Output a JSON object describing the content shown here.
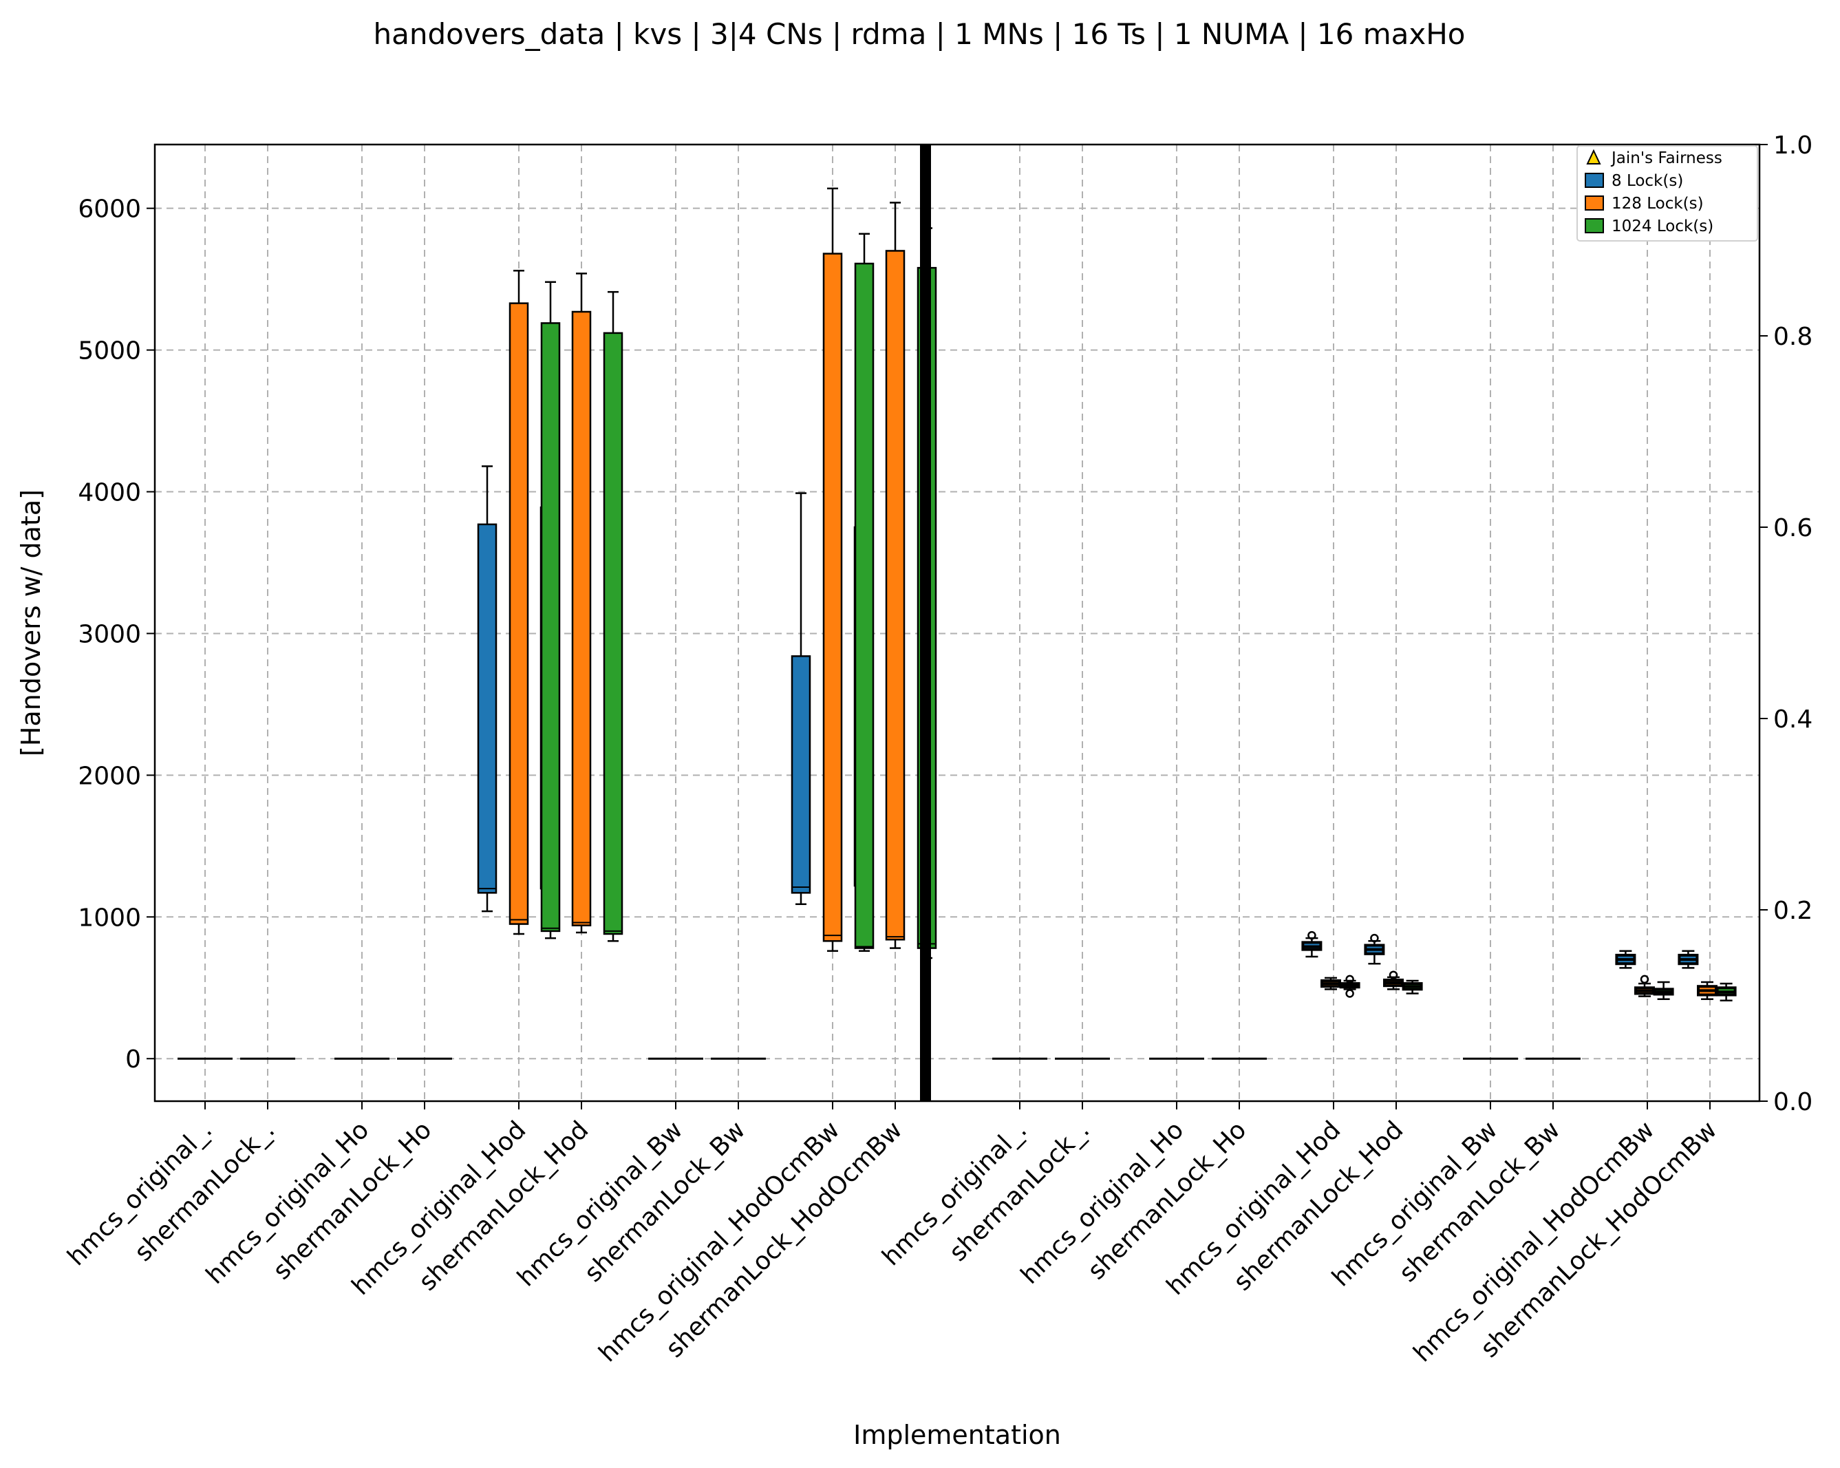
{
  "chart_data": {
    "type": "box",
    "title": "handovers_data | kvs | 3|4 CNs | rdma | 1 MNs | 16 Ts | 1 NUMA | 16 maxHo",
    "xlabel": "Implementation",
    "ylabel": "[Handovers w/ data]",
    "ylim": [
      -300,
      6450
    ],
    "y_ticks": [
      0,
      1000,
      2000,
      3000,
      4000,
      5000,
      6000
    ],
    "y2lim": [
      0,
      1
    ],
    "y2_ticks": [
      "0.0",
      "0.2",
      "0.4",
      "0.6",
      "0.8",
      "1.0"
    ],
    "grid": true,
    "legend_position": "top-right",
    "colors": {
      "8 Lock(s)": "#1f77b4",
      "128 Lock(s)": "#ff7f0e",
      "1024 Lock(s)": "#2ca02c",
      "Jain's Fairness": "#ffd700"
    },
    "legend": [
      {
        "label": "Jain's Fairness",
        "marker": "triangle"
      },
      {
        "label": "8 Lock(s)",
        "marker": "box"
      },
      {
        "label": "128 Lock(s)",
        "marker": "box"
      },
      {
        "label": "1024 Lock(s)",
        "marker": "box"
      }
    ],
    "categories": [
      "hmcs_original_.",
      "shermanLock_.",
      "hmcs_original_Ho",
      "shermanLock_Ho",
      "hmcs_original_Hod",
      "shermanLock_Hod",
      "hmcs_original_Bw",
      "shermanLock_Bw",
      "hmcs_original_HodOcmBw",
      "shermanLock_HodOcmBw",
      "hmcs_original_.",
      "shermanLock_.",
      "hmcs_original_Ho",
      "shermanLock_Ho",
      "hmcs_original_Hod",
      "shermanLock_Hod",
      "hmcs_original_Bw",
      "shermanLock_Bw",
      "hmcs_original_HodOcmBw",
      "shermanLock_HodOcmBw"
    ],
    "left_panel_series": [
      {
        "name": "8 Lock(s)",
        "boxes": [
          null,
          null,
          null,
          null,
          {
            "low": 1040,
            "q1": 1170,
            "median": 1200,
            "q3": 3770,
            "high": 4180
          },
          {
            "low": 1130,
            "q1": 1200,
            "median": 1230,
            "q3": 3890,
            "high": 4220
          },
          null,
          null,
          {
            "low": 1090,
            "q1": 1170,
            "median": 1210,
            "q3": 2840,
            "high": 3990
          },
          {
            "low": 1110,
            "q1": 1220,
            "median": 1250,
            "q3": 3750,
            "high": 4150
          }
        ]
      },
      {
        "name": "128 Lock(s)",
        "boxes": [
          null,
          null,
          null,
          null,
          {
            "low": 880,
            "q1": 950,
            "median": 980,
            "q3": 5330,
            "high": 5560
          },
          {
            "low": 890,
            "q1": 940,
            "median": 960,
            "q3": 5270,
            "high": 5540
          },
          null,
          null,
          {
            "low": 760,
            "q1": 830,
            "median": 870,
            "q3": 5680,
            "high": 6140
          },
          {
            "low": 780,
            "q1": 840,
            "median": 860,
            "q3": 5700,
            "high": 6040
          }
        ]
      },
      {
        "name": "1024 Lock(s)",
        "boxes": [
          null,
          null,
          null,
          null,
          {
            "low": 850,
            "q1": 900,
            "median": 920,
            "q3": 5190,
            "high": 5480
          },
          {
            "low": 830,
            "q1": 880,
            "median": 900,
            "q3": 5120,
            "high": 5410
          },
          null,
          null,
          {
            "low": 760,
            "q1": 780,
            "median": 790,
            "q3": 5610,
            "high": 5820
          },
          {
            "low": 710,
            "q1": 780,
            "median": 810,
            "q3": 5580,
            "high": 5860
          }
        ]
      }
    ],
    "left_panel_zero_lines": [
      0,
      1,
      2,
      3,
      6,
      7
    ],
    "right_panel_series": [
      {
        "name": "8 Lock(s)",
        "boxes": [
          null,
          null,
          null,
          null,
          {
            "low": 720,
            "q1": 770,
            "median": 790,
            "q3": 820,
            "high": 850,
            "outliers": [
              870
            ]
          },
          {
            "low": 670,
            "q1": 740,
            "median": 770,
            "q3": 800,
            "high": 830,
            "outliers": [
              850
            ]
          },
          null,
          null,
          {
            "low": 640,
            "q1": 670,
            "median": 700,
            "q3": 730,
            "high": 760,
            "outliers": []
          },
          {
            "low": 640,
            "q1": 670,
            "median": 700,
            "q3": 730,
            "high": 760,
            "outliers": []
          }
        ]
      },
      {
        "name": "128 Lock(s)",
        "boxes": [
          null,
          null,
          null,
          null,
          {
            "low": 490,
            "q1": 510,
            "median": 530,
            "q3": 550,
            "high": 570,
            "outliers": []
          },
          {
            "low": 490,
            "q1": 515,
            "median": 535,
            "q3": 555,
            "high": 575,
            "outliers": [
              590
            ]
          },
          null,
          null,
          {
            "low": 440,
            "q1": 460,
            "median": 480,
            "q3": 500,
            "high": 530,
            "outliers": [
              560
            ]
          },
          {
            "low": 420,
            "q1": 450,
            "median": 480,
            "q3": 510,
            "high": 540,
            "outliers": []
          }
        ]
      },
      {
        "name": "1024 Lock(s)",
        "boxes": [
          null,
          null,
          null,
          null,
          {
            "low": 490,
            "q1": 505,
            "median": 515,
            "q3": 530,
            "high": 550,
            "outliers": [
              460,
              560
            ]
          },
          {
            "low": 460,
            "q1": 490,
            "median": 510,
            "q3": 530,
            "high": 550,
            "outliers": []
          },
          null,
          null,
          {
            "low": 420,
            "q1": 455,
            "median": 470,
            "q3": 490,
            "high": 540,
            "outliers": []
          },
          {
            "low": 410,
            "q1": 450,
            "median": 470,
            "q3": 500,
            "high": 530,
            "outliers": []
          }
        ]
      }
    ],
    "right_panel_zero_lines": [
      0,
      1,
      2,
      3,
      6,
      7
    ]
  }
}
